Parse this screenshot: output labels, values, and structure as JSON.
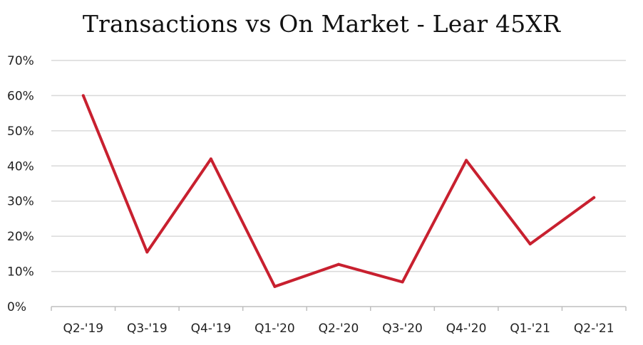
{
  "chart_data": {
    "type": "line",
    "title": "Transactions vs On Market - Lear 45XR",
    "xlabel": "",
    "ylabel": "",
    "categories": [
      "Q2-'19",
      "Q3-'19",
      "Q4-'19",
      "Q1-'20",
      "Q2-'20",
      "Q3-'20",
      "Q4-'20",
      "Q1-'21",
      "Q2-'21"
    ],
    "series": [
      {
        "values": [
          60,
          15.5,
          42,
          5.7,
          12,
          7,
          41.6,
          17.8,
          31
        ]
      }
    ],
    "ylim": [
      0,
      70
    ],
    "yticks": [
      0,
      10,
      20,
      30,
      40,
      50,
      60,
      70
    ],
    "ytick_labels": [
      "0%",
      "10%",
      "20%",
      "30%",
      "40%",
      "50%",
      "60%",
      "70%"
    ],
    "grid": true,
    "legend": "none",
    "colors": {
      "line": "#c8202f",
      "grid": "#d9d9d9",
      "axis": "#bfbfbf",
      "text": "#222222"
    }
  }
}
